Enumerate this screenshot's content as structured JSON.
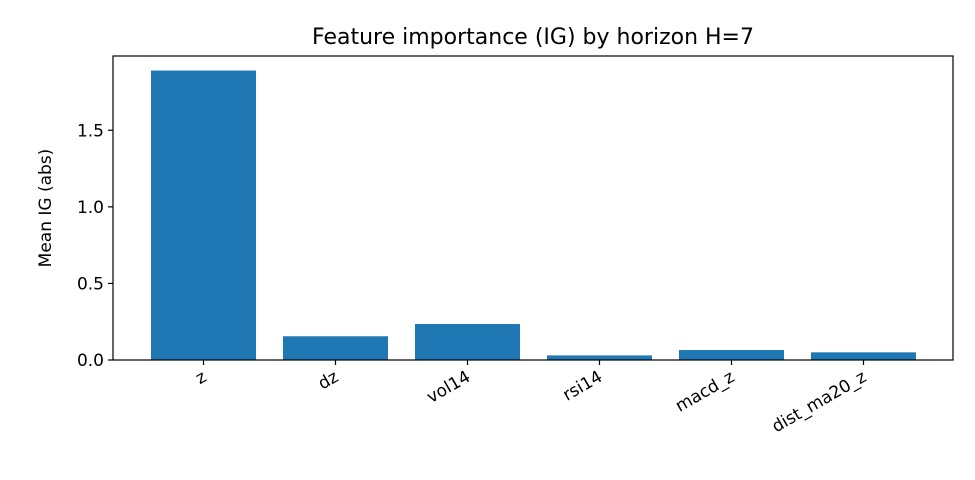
{
  "chart_data": {
    "type": "bar",
    "title": "Feature importance (IG) by horizon H=7",
    "xlabel": "",
    "ylabel": "Mean IG (abs)",
    "categories": [
      "z",
      "dz",
      "vol14",
      "rsi14",
      "macd_z",
      "dist_ma20_z"
    ],
    "values": [
      1.89,
      0.155,
      0.235,
      0.03,
      0.065,
      0.05
    ],
    "ylim": [
      0,
      1.985
    ],
    "yticks": [
      0.0,
      0.5,
      1.0,
      1.5
    ],
    "ytick_labels": [
      "0.0",
      "0.5",
      "1.0",
      "1.5"
    ],
    "bar_color": "#1f77b4",
    "grid": false,
    "legend": "none"
  }
}
